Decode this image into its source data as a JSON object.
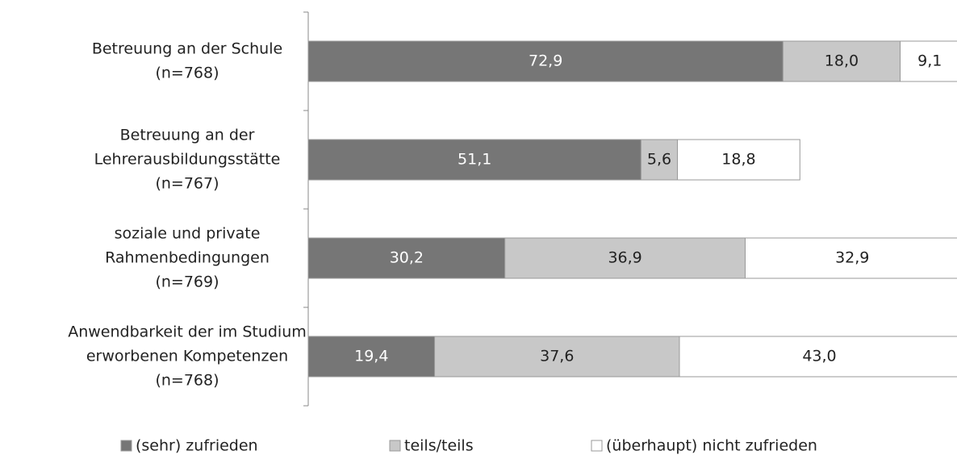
{
  "chart_data": {
    "type": "stacked-bar-horizontal",
    "categories": [
      [
        "Betreuung an der Schule",
        "(n=768)"
      ],
      [
        "Betreuung an der",
        "Lehrerausbildungsstätte",
        "(n=767)"
      ],
      [
        "soziale und private",
        "Rahmenbedingungen",
        "(n=769)"
      ],
      [
        "Anwendbarkeit der im Studium",
        "erworbenen Kompetenzen",
        "(n=768)"
      ]
    ],
    "series": [
      {
        "name": "(sehr) zufrieden",
        "color": "#767676",
        "label_color": "#ffffff",
        "values": [
          72.9,
          51.1,
          30.2,
          19.4
        ],
        "value_labels": [
          "72,9",
          "51,1",
          "30,2",
          "19,4"
        ]
      },
      {
        "name": "teils/teils",
        "color": "#c8c8c8",
        "label_color": "#222222",
        "values": [
          18.0,
          5.6,
          36.9,
          37.6
        ],
        "value_labels": [
          "18,0",
          "5,6",
          "36,9",
          "37,6"
        ]
      },
      {
        "name": "(überhaupt) nicht zufrieden",
        "color": "#ffffff",
        "label_color": "#222222",
        "values": [
          9.1,
          18.8,
          32.9,
          43.0
        ],
        "value_labels": [
          "9,1",
          "18,8",
          "32,9",
          "43,0"
        ]
      }
    ],
    "xlim": [
      0,
      100
    ]
  }
}
